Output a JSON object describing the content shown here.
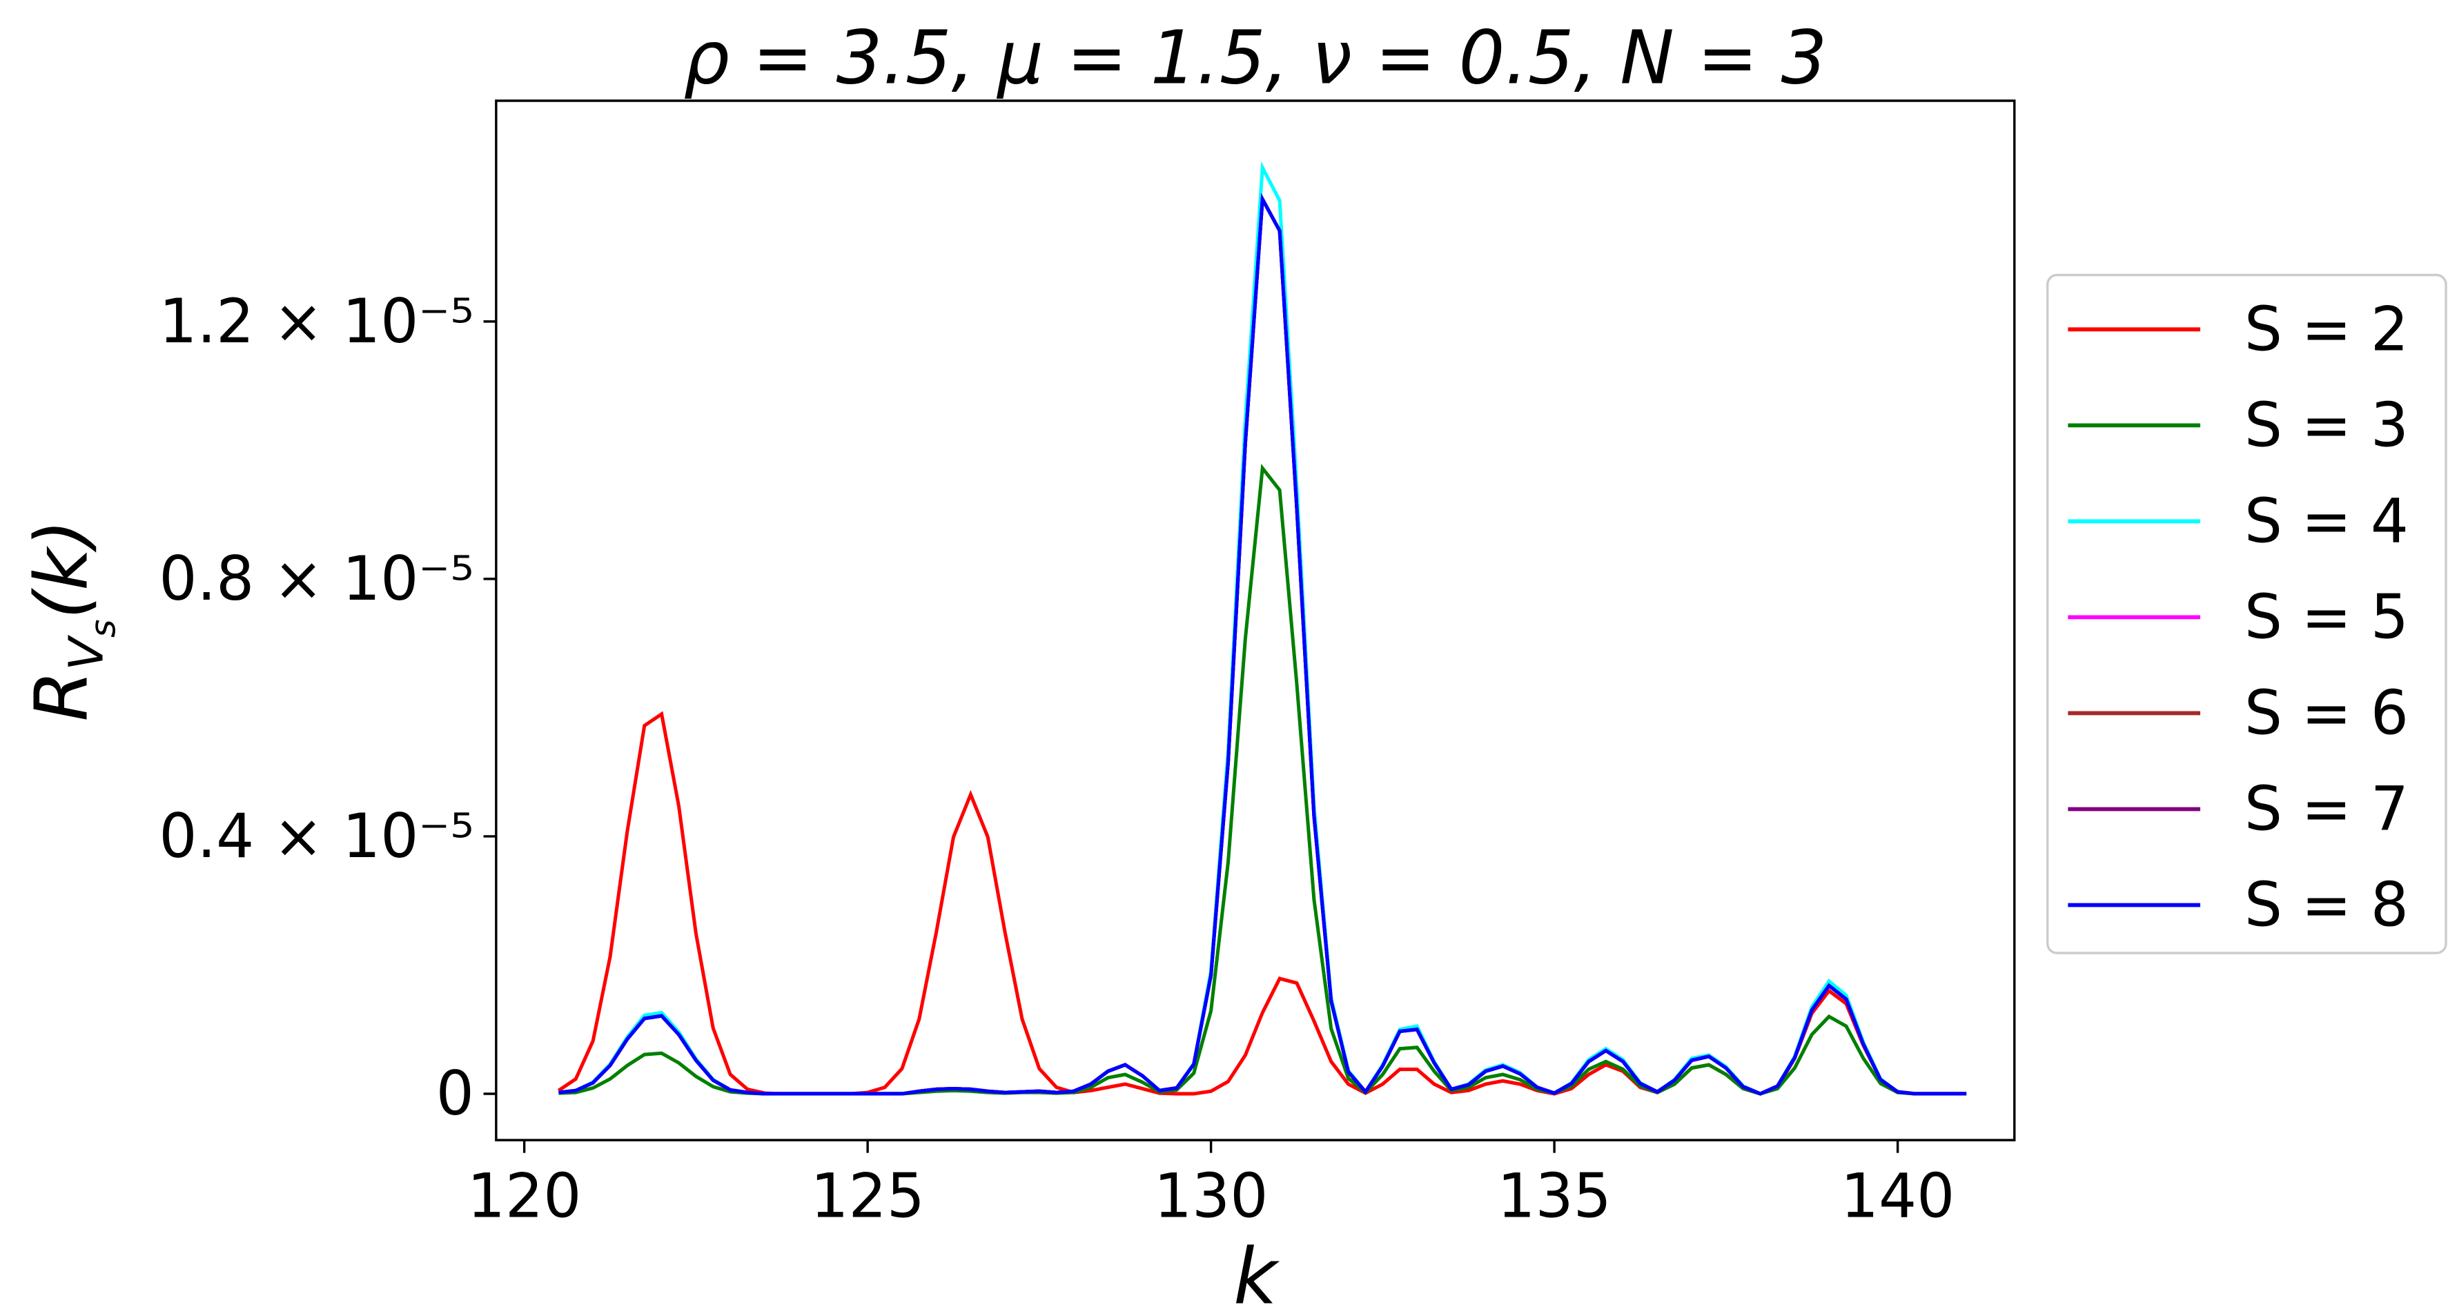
{
  "chart_data": {
    "type": "line",
    "title": "ρ = 3.5, μ = 1.5, ν = 0.5, N = 3",
    "x_label": "k",
    "y_label": {
      "base": "R",
      "sub": "V",
      "subsub": "s",
      "rest": "(k)"
    },
    "xlim": [
      119.59,
      141.7
    ],
    "ylim": [
      -7.2e-07,
      1.543e-05
    ],
    "xticks": [
      120,
      125,
      130,
      135,
      140
    ],
    "yticks": [
      0,
      {
        "value": 4e-06,
        "label": "0.4 × 10⁻⁵"
      },
      {
        "value": 8e-06,
        "label": "0.8 × 10⁻⁵"
      },
      {
        "value": 1.2e-05,
        "label": "1.2 × 10⁻⁵"
      }
    ],
    "legend": "outside-right",
    "x": [
      120.5,
      120.75,
      121,
      121.25,
      121.5,
      121.75,
      122,
      122.25,
      122.5,
      122.75,
      123,
      123.25,
      123.5,
      123.75,
      124,
      124.25,
      124.5,
      124.75,
      125,
      125.25,
      125.5,
      125.75,
      126,
      126.25,
      126.5,
      126.75,
      127,
      127.25,
      127.5,
      127.75,
      128,
      128.25,
      128.5,
      128.75,
      129,
      129.25,
      129.5,
      129.75,
      130,
      130.25,
      130.5,
      130.75,
      131,
      131.25,
      131.5,
      131.75,
      132,
      132.25,
      132.5,
      132.75,
      133,
      133.25,
      133.5,
      133.75,
      134,
      134.25,
      134.5,
      134.75,
      135,
      135.25,
      135.5,
      135.75,
      136,
      136.25,
      136.5,
      136.75,
      137,
      137.25,
      137.5,
      137.75,
      138,
      138.25,
      138.5,
      138.75,
      139,
      139.25,
      139.5,
      139.75,
      140,
      140.25,
      140.5,
      140.75,
      141
    ],
    "series": [
      {
        "name": "S = 2",
        "color": "#ff0000",
        "values": [
          5e-08,
          2.3e-07,
          8.2e-07,
          2.13e-06,
          4.08e-06,
          5.72e-06,
          5.9e-06,
          4.47e-06,
          2.49e-06,
          1.02e-06,
          3e-07,
          7e-08,
          1e-08,
          0,
          0,
          0,
          0,
          0,
          2e-08,
          1e-07,
          3.9e-07,
          1.16e-06,
          2.51e-06,
          3.99e-06,
          4.65e-06,
          3.99e-06,
          2.51e-06,
          1.16e-06,
          3.9e-07,
          1e-07,
          2e-08,
          5e-08,
          1e-07,
          1.5e-07,
          8e-08,
          1e-08,
          0,
          0,
          4e-08,
          1.9e-07,
          6e-07,
          1.26e-06,
          1.79e-06,
          1.72e-06,
          1.13e-06,
          5e-07,
          1.5e-07,
          1e-08,
          1.5e-07,
          3.8e-07,
          3.8e-07,
          1.5e-07,
          2e-08,
          5e-08,
          1.5e-07,
          2e-07,
          1.5e-07,
          5e-08,
          0,
          8e-08,
          3e-07,
          4.5e-07,
          3.5e-07,
          1e-07,
          2e-08,
          1.5e-07,
          4e-07,
          4.5e-07,
          3e-07,
          8e-08,
          0,
          1e-07,
          5.5e-07,
          1.25e-06,
          1.6e-06,
          1.4e-06,
          7.5e-07,
          2.2e-07,
          3e-08,
          0,
          0,
          0,
          0
        ]
      },
      {
        "name": "S = 3",
        "color": "#008000",
        "values": [
          1e-08,
          2e-08,
          9e-08,
          2.3e-07,
          4.4e-07,
          6.1e-07,
          6.3e-07,
          4.8e-07,
          2.7e-07,
          1.1e-07,
          3e-08,
          1e-08,
          0,
          0,
          0,
          0,
          0,
          0,
          0,
          0,
          0,
          2e-08,
          4e-08,
          5e-08,
          4e-08,
          2e-08,
          1e-08,
          2e-08,
          2e-08,
          1e-08,
          2e-08,
          1e-07,
          2.5e-07,
          3e-07,
          1.8e-07,
          3e-08,
          6e-08,
          3.2e-07,
          1.29e-06,
          3.6e-06,
          7.07e-06,
          9.72e-06,
          9.38e-06,
          6.36e-06,
          3.02e-06,
          1.01e-06,
          2.4e-07,
          2e-08,
          3e-07,
          7e-07,
          7.2e-07,
          3.5e-07,
          5e-08,
          1e-07,
          2.5e-07,
          3e-07,
          2.2e-07,
          7e-08,
          1e-08,
          1.2e-07,
          3.8e-07,
          5e-07,
          3.8e-07,
          1.2e-07,
          2e-08,
          1.5e-07,
          4e-07,
          4.5e-07,
          3e-07,
          8e-08,
          0,
          8e-08,
          4e-07,
          9.2e-07,
          1.2e-06,
          1.05e-06,
          5.5e-07,
          1.6e-07,
          2e-08,
          0,
          0,
          0,
          0
        ]
      },
      {
        "name": "S = 4",
        "color": "#00ffff",
        "values": [
          2e-08,
          5e-08,
          1.8e-07,
          4.6e-07,
          8.8e-07,
          1.22e-06,
          1.26e-06,
          9.6e-07,
          5.4e-07,
          2.2e-07,
          6e-08,
          2e-08,
          0,
          0,
          0,
          0,
          0,
          0,
          0,
          0,
          0,
          4e-08,
          7e-08,
          8e-08,
          7e-08,
          4e-08,
          2e-08,
          3e-08,
          4e-08,
          2e-08,
          4e-08,
          1.5e-07,
          3.5e-07,
          4.5e-07,
          2.8e-07,
          5e-08,
          9e-08,
          4.7e-07,
          1.91e-06,
          5.33e-06,
          1.046e-05,
          1.439e-05,
          1.388e-05,
          9.41e-06,
          4.47e-06,
          1.49e-06,
          3.6e-07,
          3e-08,
          4.5e-07,
          1e-06,
          1.05e-06,
          5e-07,
          7e-08,
          1.5e-07,
          3.7e-07,
          4.5e-07,
          3.3e-07,
          1e-07,
          1e-08,
          1.7e-07,
          5.3e-07,
          7e-07,
          5.3e-07,
          1.7e-07,
          3e-08,
          2.2e-07,
          5.5e-07,
          6e-07,
          4.2e-07,
          1.2e-07,
          0,
          1.2e-07,
          5.8e-07,
          1.35e-06,
          1.75e-06,
          1.53e-06,
          8e-07,
          2.3e-07,
          3e-08,
          0,
          0,
          0,
          0
        ]
      },
      {
        "name": "S = 5",
        "color": "#ff00ff",
        "values": [
          2e-08,
          5e-08,
          1.7e-07,
          4.4e-07,
          8.5e-07,
          1.17e-06,
          1.21e-06,
          9.2e-07,
          5.2e-07,
          2.1e-07,
          6e-08,
          2e-08,
          0,
          0,
          0,
          0,
          0,
          0,
          0,
          0,
          0,
          4e-08,
          7e-08,
          8e-08,
          7e-08,
          4e-08,
          2e-08,
          3e-08,
          4e-08,
          2e-08,
          4e-08,
          1.5e-07,
          3.5e-07,
          4.5e-07,
          2.8e-07,
          5e-08,
          9e-08,
          4.6e-07,
          1.84e-06,
          5.15e-06,
          1.011e-05,
          1.39e-05,
          1.341e-05,
          9.09e-06,
          4.32e-06,
          1.44e-06,
          3.4e-07,
          3e-08,
          4.3e-07,
          9.7e-07,
          1e-06,
          4.8e-07,
          7e-08,
          1.4e-07,
          3.5e-07,
          4.3e-07,
          3.1e-07,
          1e-07,
          1e-08,
          1.6e-07,
          5e-07,
          6.7e-07,
          5e-07,
          1.6e-07,
          3e-08,
          2.1e-07,
          5.2e-07,
          5.8e-07,
          4e-07,
          1.1e-07,
          0,
          1.2e-07,
          5.6e-07,
          1.3e-06,
          1.68e-06,
          1.47e-06,
          7.7e-07,
          2.2e-07,
          3e-08,
          0,
          0,
          0,
          0
        ]
      },
      {
        "name": "S = 6",
        "color": "#a52a2a",
        "values": [
          2e-08,
          5e-08,
          1.7e-07,
          4.4e-07,
          8.5e-07,
          1.17e-06,
          1.21e-06,
          9.2e-07,
          5.2e-07,
          2.1e-07,
          6e-08,
          2e-08,
          0,
          0,
          0,
          0,
          0,
          0,
          0,
          0,
          0,
          4e-08,
          7e-08,
          8e-08,
          7e-08,
          4e-08,
          2e-08,
          3e-08,
          4e-08,
          2e-08,
          4e-08,
          1.5e-07,
          3.5e-07,
          4.5e-07,
          2.8e-07,
          5e-08,
          9e-08,
          4.6e-07,
          1.84e-06,
          5.15e-06,
          1.011e-05,
          1.39e-05,
          1.341e-05,
          9.09e-06,
          4.32e-06,
          1.44e-06,
          3.4e-07,
          3e-08,
          4.3e-07,
          9.7e-07,
          1e-06,
          4.8e-07,
          7e-08,
          1.4e-07,
          3.5e-07,
          4.3e-07,
          3.1e-07,
          1e-07,
          1e-08,
          1.6e-07,
          5e-07,
          6.7e-07,
          5e-07,
          1.6e-07,
          3e-08,
          2.1e-07,
          5.2e-07,
          5.8e-07,
          4e-07,
          1.1e-07,
          0,
          1.2e-07,
          5.6e-07,
          1.3e-06,
          1.68e-06,
          1.47e-06,
          7.7e-07,
          2.2e-07,
          3e-08,
          0,
          0,
          0,
          0
        ]
      },
      {
        "name": "S = 7",
        "color": "#800080",
        "values": [
          2e-08,
          5e-08,
          1.7e-07,
          4.4e-07,
          8.5e-07,
          1.17e-06,
          1.21e-06,
          9.2e-07,
          5.2e-07,
          2.1e-07,
          6e-08,
          2e-08,
          0,
          0,
          0,
          0,
          0,
          0,
          0,
          0,
          0,
          4e-08,
          7e-08,
          8e-08,
          7e-08,
          4e-08,
          2e-08,
          3e-08,
          4e-08,
          2e-08,
          4e-08,
          1.5e-07,
          3.5e-07,
          4.5e-07,
          2.8e-07,
          5e-08,
          9e-08,
          4.6e-07,
          1.84e-06,
          5.15e-06,
          1.011e-05,
          1.39e-05,
          1.341e-05,
          9.09e-06,
          4.32e-06,
          1.44e-06,
          3.4e-07,
          3e-08,
          4.3e-07,
          9.7e-07,
          1e-06,
          4.8e-07,
          7e-08,
          1.4e-07,
          3.5e-07,
          4.3e-07,
          3.1e-07,
          1e-07,
          1e-08,
          1.6e-07,
          5e-07,
          6.7e-07,
          5e-07,
          1.6e-07,
          3e-08,
          2.1e-07,
          5.2e-07,
          5.8e-07,
          4e-07,
          1.1e-07,
          0,
          1.2e-07,
          5.6e-07,
          1.3e-06,
          1.68e-06,
          1.47e-06,
          7.7e-07,
          2.2e-07,
          3e-08,
          0,
          0,
          0,
          0
        ]
      },
      {
        "name": "S = 8",
        "color": "#0000ff",
        "values": [
          2e-08,
          5e-08,
          1.7e-07,
          4.4e-07,
          8.5e-07,
          1.17e-06,
          1.21e-06,
          9.2e-07,
          5.2e-07,
          2.1e-07,
          6e-08,
          2e-08,
          0,
          0,
          0,
          0,
          0,
          0,
          0,
          0,
          0,
          4e-08,
          7e-08,
          8e-08,
          7e-08,
          4e-08,
          2e-08,
          3e-08,
          4e-08,
          2e-08,
          4e-08,
          1.5e-07,
          3.5e-07,
          4.5e-07,
          2.8e-07,
          5e-08,
          9e-08,
          4.6e-07,
          1.84e-06,
          5.15e-06,
          1.011e-05,
          1.39e-05,
          1.341e-05,
          9.09e-06,
          4.32e-06,
          1.44e-06,
          3.4e-07,
          3e-08,
          4.3e-07,
          9.7e-07,
          1e-06,
          4.8e-07,
          7e-08,
          1.4e-07,
          3.5e-07,
          4.3e-07,
          3.1e-07,
          1e-07,
          1e-08,
          1.6e-07,
          5e-07,
          6.7e-07,
          5e-07,
          1.6e-07,
          3e-08,
          2.1e-07,
          5.2e-07,
          5.8e-07,
          4e-07,
          1.1e-07,
          0,
          1.2e-07,
          5.6e-07,
          1.3e-06,
          1.68e-06,
          1.47e-06,
          7.7e-07,
          2.2e-07,
          3e-08,
          0,
          0,
          0,
          0
        ]
      }
    ]
  }
}
